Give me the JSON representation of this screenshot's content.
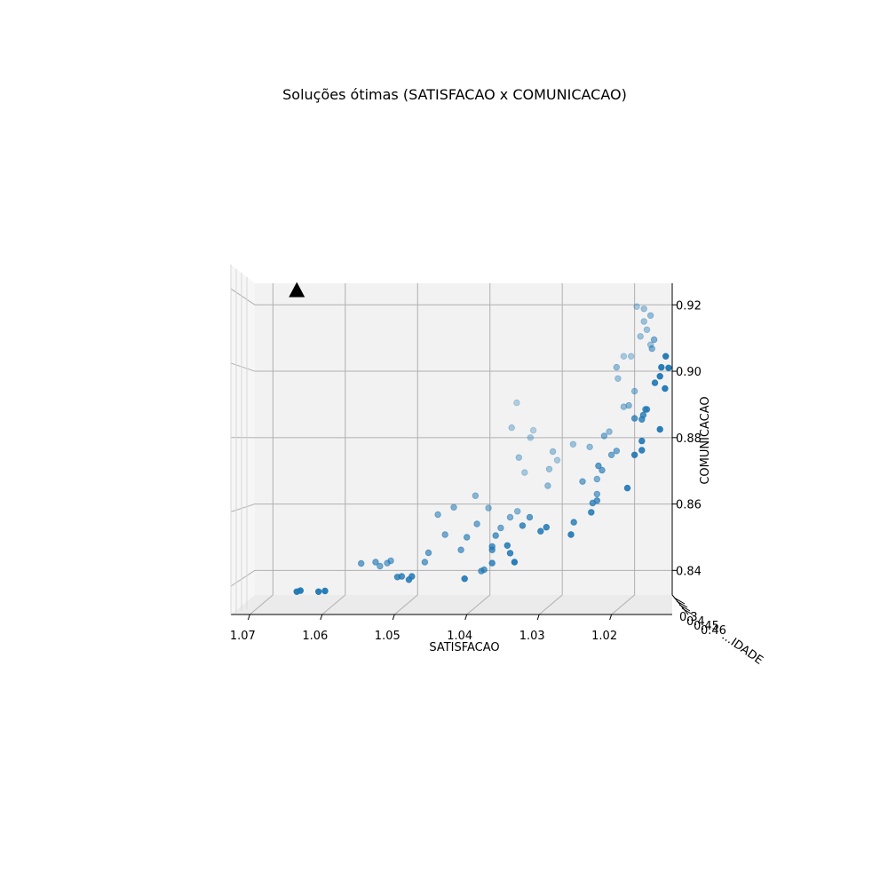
{
  "chart_data": {
    "type": "scatter",
    "title": "Soluções ótimas (SATISFACAO x COMUNICACAO)",
    "xlabel": "SATISFACAO",
    "ylabel": "COMUNICACAO",
    "zlabel": "...IDADE",
    "xlim": [
      1.0148,
      1.0725
    ],
    "ylim": [
      0.8326,
      0.9265
    ],
    "x_reversed": true,
    "x_ticks": [
      "1.07",
      "1.06",
      "1.05",
      "1.04",
      "1.03",
      "1.02"
    ],
    "x_tick_values": [
      1.07,
      1.06,
      1.05,
      1.04,
      1.03,
      1.02
    ],
    "y_ticks": [
      "0.84",
      "0.86",
      "0.88",
      "0.90",
      "0.92"
    ],
    "y_tick_values": [
      0.84,
      0.86,
      0.88,
      0.9,
      0.92
    ],
    "z_tick_labels": [
      "0.3",
      "0.4",
      "0.45",
      "0.46"
    ],
    "grid": true,
    "marker_color": "#1f77b4",
    "highlight_marker": {
      "shape": "triangle",
      "color": "#000000",
      "x": 1.0667,
      "y": 0.9242
    },
    "series": [
      {
        "points": [
          [
            1.0667,
            0.8336,
            0.95
          ],
          [
            1.0662,
            0.8339,
            0.95
          ],
          [
            1.0637,
            0.8336,
            0.95
          ],
          [
            1.0628,
            0.8338,
            0.95
          ],
          [
            1.0578,
            0.8421,
            0.65
          ],
          [
            1.0558,
            0.8425,
            0.65
          ],
          [
            1.0552,
            0.8413,
            0.6
          ],
          [
            1.0542,
            0.8422,
            0.6
          ],
          [
            1.0537,
            0.8429,
            0.6
          ],
          [
            1.0528,
            0.838,
            0.8
          ],
          [
            1.0522,
            0.8382,
            0.8
          ],
          [
            1.0512,
            0.8372,
            0.85
          ],
          [
            1.0508,
            0.8382,
            0.85
          ],
          [
            1.049,
            0.8425,
            0.65
          ],
          [
            1.0485,
            0.8453,
            0.65
          ],
          [
            1.0472,
            0.8568,
            0.55
          ],
          [
            1.0462,
            0.8508,
            0.6
          ],
          [
            1.045,
            0.859,
            0.55
          ],
          [
            1.044,
            0.8462,
            0.65
          ],
          [
            1.0435,
            0.8375,
            0.9
          ],
          [
            1.0432,
            0.85,
            0.65
          ],
          [
            1.042,
            0.8625,
            0.5
          ],
          [
            1.0418,
            0.854,
            0.6
          ],
          [
            1.0412,
            0.8398,
            0.7
          ],
          [
            1.0408,
            0.8402,
            0.7
          ],
          [
            1.0402,
            0.8588,
            0.5
          ],
          [
            1.0397,
            0.8422,
            0.8
          ],
          [
            1.0397,
            0.8462,
            0.75
          ],
          [
            1.0397,
            0.8472,
            0.75
          ],
          [
            1.0392,
            0.8505,
            0.7
          ],
          [
            1.0385,
            0.8528,
            0.6
          ],
          [
            1.0376,
            0.8475,
            0.85
          ],
          [
            1.0372,
            0.8452,
            0.85
          ],
          [
            1.0372,
            0.856,
            0.55
          ],
          [
            1.037,
            0.883,
            0.35
          ],
          [
            1.0366,
            0.8425,
            0.95
          ],
          [
            1.0363,
            0.8905,
            0.3
          ],
          [
            1.0362,
            0.8578,
            0.5
          ],
          [
            1.036,
            0.874,
            0.4
          ],
          [
            1.0355,
            0.8535,
            0.8
          ],
          [
            1.0352,
            0.8695,
            0.35
          ],
          [
            1.0345,
            0.856,
            0.7
          ],
          [
            1.0344,
            0.88,
            0.35
          ],
          [
            1.034,
            0.8822,
            0.3
          ],
          [
            1.033,
            0.8518,
            0.85
          ],
          [
            1.0322,
            0.853,
            0.85
          ],
          [
            1.032,
            0.8655,
            0.45
          ],
          [
            1.0318,
            0.8705,
            0.4
          ],
          [
            1.0313,
            0.8758,
            0.4
          ],
          [
            1.0307,
            0.8732,
            0.35
          ],
          [
            1.0288,
            0.8508,
            0.9
          ],
          [
            1.0284,
            0.8545,
            0.8
          ],
          [
            1.0285,
            0.878,
            0.4
          ],
          [
            1.0272,
            0.8668,
            0.6
          ],
          [
            1.0262,
            0.8772,
            0.45
          ],
          [
            1.026,
            0.8575,
            0.85
          ],
          [
            1.0258,
            0.8603,
            0.75
          ],
          [
            1.0252,
            0.861,
            0.75
          ],
          [
            1.0252,
            0.863,
            0.6
          ],
          [
            1.0252,
            0.8675,
            0.55
          ],
          [
            1.025,
            0.8715,
            0.7
          ],
          [
            1.0245,
            0.8702,
            0.65
          ],
          [
            1.0242,
            0.8805,
            0.55
          ],
          [
            1.0235,
            0.8818,
            0.45
          ],
          [
            1.0232,
            0.8748,
            0.6
          ],
          [
            1.0225,
            0.876,
            0.6
          ],
          [
            1.0225,
            0.9012,
            0.45
          ],
          [
            1.0223,
            0.8978,
            0.4
          ],
          [
            1.0215,
            0.8893,
            0.45
          ],
          [
            1.0215,
            0.9045,
            0.35
          ],
          [
            1.021,
            0.8648,
            0.9
          ],
          [
            1.0208,
            0.8897,
            0.5
          ],
          [
            1.0205,
            0.9045,
            0.35
          ],
          [
            1.02,
            0.8748,
            0.9
          ],
          [
            1.02,
            0.8858,
            0.75
          ],
          [
            1.02,
            0.894,
            0.45
          ],
          [
            1.0197,
            0.9195,
            0.35
          ],
          [
            1.0192,
            0.9105,
            0.4
          ],
          [
            1.019,
            0.8762,
            0.9
          ],
          [
            1.019,
            0.879,
            0.9
          ],
          [
            1.019,
            0.8855,
            0.8
          ],
          [
            1.0188,
            0.8868,
            0.8
          ],
          [
            1.0187,
            0.915,
            0.4
          ],
          [
            1.0187,
            0.9188,
            0.4
          ],
          [
            1.0185,
            0.8885,
            0.75
          ],
          [
            1.0183,
            0.8885,
            0.75
          ],
          [
            1.0183,
            0.9125,
            0.4
          ],
          [
            1.0178,
            0.908,
            0.4
          ],
          [
            1.0178,
            0.9168,
            0.45
          ],
          [
            1.0176,
            0.9068,
            0.55
          ],
          [
            1.0173,
            0.9095,
            0.55
          ],
          [
            1.0172,
            0.8965,
            0.9
          ],
          [
            1.0165,
            0.8825,
            0.95
          ],
          [
            1.0165,
            0.8985,
            0.95
          ],
          [
            1.0163,
            0.9012,
            0.95
          ],
          [
            1.0158,
            0.8948,
            0.95
          ],
          [
            1.0157,
            0.9045,
            0.95
          ],
          [
            1.0153,
            0.901,
            0.95
          ]
        ]
      }
    ]
  }
}
